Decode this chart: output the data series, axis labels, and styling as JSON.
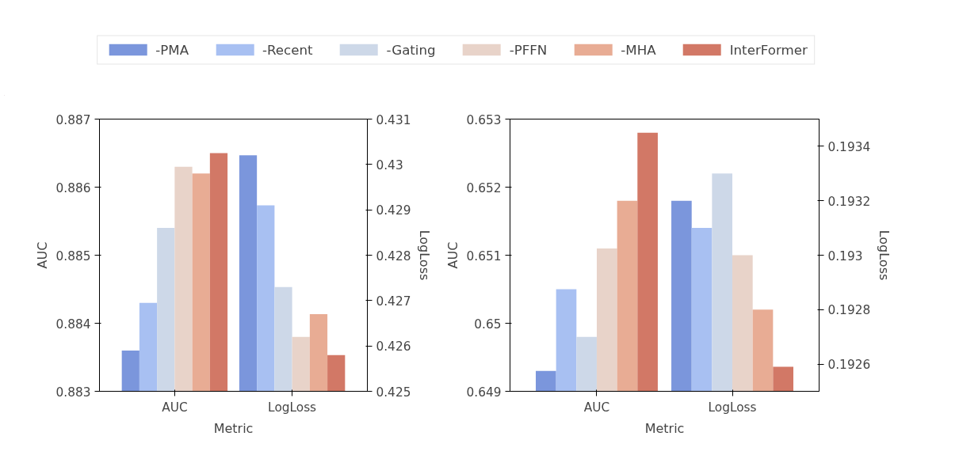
{
  "chart_data": [
    {
      "type": "bar",
      "categories": [
        "AUC",
        "LogLoss"
      ],
      "xlabel": "Metric",
      "ylabel": "AUC",
      "y2label": "LogLoss",
      "ylim": [
        0.883,
        0.887
      ],
      "yticks": [
        0.883,
        0.884,
        0.885,
        0.886,
        0.887
      ],
      "y2lim": [
        0.425,
        0.431
      ],
      "y2ticks": [
        0.425,
        0.426,
        0.427,
        0.428,
        0.429,
        0.43,
        0.431
      ],
      "legend": "top",
      "grid": false,
      "series": [
        {
          "name": "-PMA",
          "color": "#7b96dc",
          "values": [
            0.8836,
            null
          ]
        },
        {
          "name": "-Recent",
          "color": "#a8c0f2",
          "values": [
            0.8843,
            null
          ]
        },
        {
          "name": "-Gating",
          "color": "#cdd8e8",
          "values": [
            0.8854,
            null
          ]
        },
        {
          "name": "-PFFN",
          "color": "#e8d3c9",
          "values": [
            0.8863,
            null
          ]
        },
        {
          "name": "-MHA",
          "color": "#e8ac94",
          "values": [
            0.8862,
            null
          ]
        },
        {
          "name": "InterFormer",
          "color": "#d27866",
          "values": [
            0.8865,
            null
          ]
        },
        {
          "color": "#7b96dc",
          "axis": "y2",
          "values": [
            null,
            0.4302
          ]
        },
        {
          "color": "#a8c0f2",
          "axis": "y2",
          "values": [
            null,
            0.4291
          ]
        },
        {
          "color": "#cdd8e8",
          "axis": "y2",
          "values": [
            null,
            0.4273
          ]
        },
        {
          "color": "#e8d3c9",
          "axis": "y2",
          "values": [
            null,
            0.4262
          ]
        },
        {
          "color": "#e8ac94",
          "axis": "y2",
          "values": [
            null,
            0.4267
          ]
        },
        {
          "color": "#d27866",
          "axis": "y2",
          "values": [
            null,
            0.4258
          ]
        }
      ]
    },
    {
      "type": "bar",
      "categories": [
        "AUC",
        "LogLoss"
      ],
      "xlabel": "Metric",
      "ylabel": "AUC",
      "y2label": "LogLoss",
      "ylim": [
        0.649,
        0.653
      ],
      "yticks": [
        0.649,
        0.65,
        0.651,
        0.652,
        0.653
      ],
      "y2lim": [
        0.1925,
        0.1935
      ],
      "y2ticks": [
        0.1926,
        0.1928,
        0.193,
        0.1932,
        0.1934
      ],
      "grid": false,
      "series": [
        {
          "color": "#7b96dc",
          "values": [
            0.6493,
            null
          ]
        },
        {
          "color": "#a8c0f2",
          "values": [
            0.6505,
            null
          ]
        },
        {
          "color": "#cdd8e8",
          "values": [
            0.6498,
            null
          ]
        },
        {
          "color": "#e8d3c9",
          "values": [
            0.6511,
            null
          ]
        },
        {
          "color": "#e8ac94",
          "values": [
            0.6518,
            null
          ]
        },
        {
          "color": "#d27866",
          "values": [
            0.6528,
            null
          ]
        },
        {
          "color": "#7b96dc",
          "axis": "y2",
          "values": [
            null,
            0.1932
          ]
        },
        {
          "color": "#a8c0f2",
          "axis": "y2",
          "values": [
            null,
            0.1931
          ]
        },
        {
          "color": "#cdd8e8",
          "axis": "y2",
          "values": [
            null,
            0.1933
          ]
        },
        {
          "color": "#e8d3c9",
          "axis": "y2",
          "values": [
            null,
            0.193
          ]
        },
        {
          "color": "#e8ac94",
          "axis": "y2",
          "values": [
            null,
            0.1928
          ]
        },
        {
          "color": "#d27866",
          "axis": "y2",
          "values": [
            null,
            0.19259
          ]
        }
      ]
    }
  ]
}
